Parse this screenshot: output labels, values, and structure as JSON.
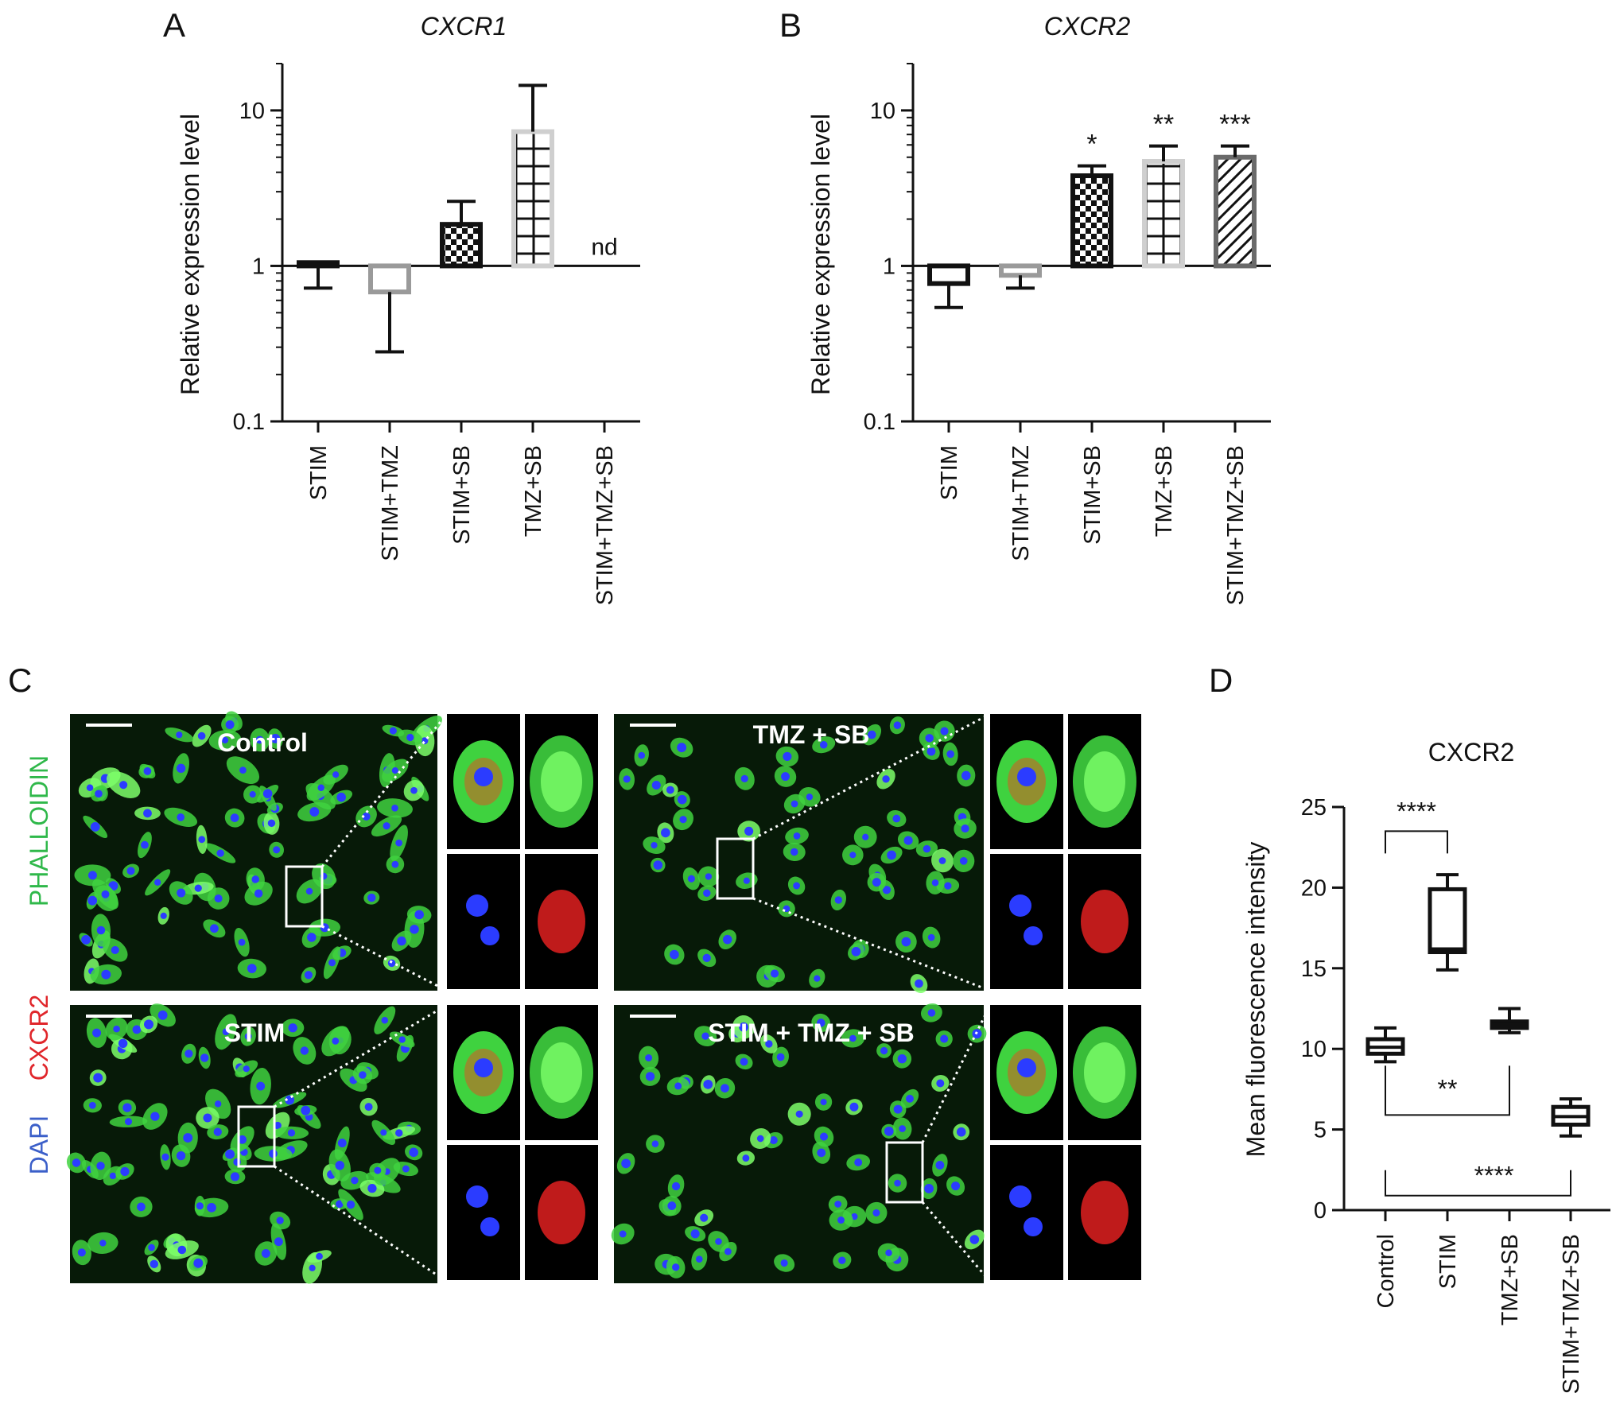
{
  "panel_letters": {
    "a": "A",
    "b": "B",
    "c": "C",
    "d": "D"
  },
  "chart_data": [
    {
      "id": "A",
      "type": "bar",
      "title": "CXCR1",
      "ylabel": "Relative expression level",
      "yscale": "log",
      "baseline": 1,
      "ylim": [
        0.1,
        20
      ],
      "yticks": [
        0.1,
        1,
        10
      ],
      "ytick_labels": [
        "0.1",
        "1",
        "10"
      ],
      "categories": [
        "STIM",
        "STIM+TMZ",
        "STIM+SB",
        "TMZ+SB",
        "STIM+TMZ+SB"
      ],
      "values": [
        1.05,
        0.68,
        1.85,
        7.3,
        null
      ],
      "error": [
        0.72,
        0.28,
        2.6,
        14.5,
        null
      ],
      "patterns": [
        "solid",
        "empty",
        "checker",
        "grid",
        "none"
      ],
      "edge_colors": [
        "#111111",
        "#9a9a9a",
        "#111111",
        "#cfcfcf",
        "#111111"
      ],
      "annotations": [
        "",
        "",
        "",
        "",
        "nd"
      ]
    },
    {
      "id": "B",
      "type": "bar",
      "title": "CXCR2",
      "ylabel": "Relative expression level",
      "yscale": "log",
      "baseline": 1,
      "ylim": [
        0.1,
        20
      ],
      "yticks": [
        0.1,
        1,
        10
      ],
      "ytick_labels": [
        "0.1",
        "1",
        "10"
      ],
      "categories": [
        "STIM",
        "STIM+TMZ",
        "STIM+SB",
        "TMZ+SB",
        "STIM+TMZ+SB"
      ],
      "values": [
        0.77,
        0.87,
        3.8,
        4.7,
        5.0
      ],
      "error": [
        0.54,
        0.72,
        4.4,
        5.9,
        5.9
      ],
      "patterns": [
        "empty",
        "empty",
        "checker",
        "grid",
        "hatch"
      ],
      "edge_colors": [
        "#111111",
        "#9a9a9a",
        "#111111",
        "#cfcfcf",
        "#6a6a6a"
      ],
      "annotations": [
        "",
        "",
        "*",
        "**",
        "***"
      ]
    },
    {
      "id": "D",
      "type": "box",
      "title": "CXCR2",
      "ylabel": "Mean fluorescence intensity",
      "ylim": [
        0,
        25
      ],
      "yticks": [
        0,
        5,
        10,
        15,
        20,
        25
      ],
      "ytick_labels": [
        "0",
        "5",
        "10",
        "15",
        "20",
        "25"
      ],
      "categories": [
        "Control",
        "STIM",
        "TMZ+SB",
        "STIM+TMZ+SB"
      ],
      "boxes": [
        {
          "min": 9.2,
          "q1": 9.7,
          "median": 10.1,
          "q3": 10.6,
          "max": 11.3
        },
        {
          "min": 14.9,
          "q1": 16.0,
          "median": 16.2,
          "q3": 19.9,
          "max": 20.8
        },
        {
          "min": 11.0,
          "q1": 11.3,
          "median": 11.5,
          "q3": 11.7,
          "max": 12.5
        },
        {
          "min": 4.6,
          "q1": 5.3,
          "median": 5.8,
          "q3": 6.4,
          "max": 6.9
        }
      ],
      "comparisons": [
        {
          "from": 0,
          "to": 1,
          "label": "****",
          "side": "top"
        },
        {
          "from": 0,
          "to": 2,
          "label": "**",
          "side": "bottom"
        },
        {
          "from": 0,
          "to": 3,
          "label": "****",
          "side": "bottom"
        }
      ]
    }
  ],
  "micrographs": {
    "panels": [
      {
        "label": "Control"
      },
      {
        "label": "TMZ + SB"
      },
      {
        "label": "STIM"
      },
      {
        "label": "STIM + TMZ + SB"
      }
    ],
    "stain_labels": [
      {
        "text": "PHALLOIDIN",
        "color": "#2fb84a"
      },
      {
        "text": "CXCR2",
        "color": "#e0262b"
      },
      {
        "text": "DAPI",
        "color": "#3b5fc9"
      }
    ],
    "colors": {
      "background": "#071a08",
      "cell": "#3fd23f",
      "cell_light": "#7dff6a",
      "nucleus": "#2b3cff",
      "cxcr2": "#e02020",
      "dark": "#000000"
    }
  }
}
